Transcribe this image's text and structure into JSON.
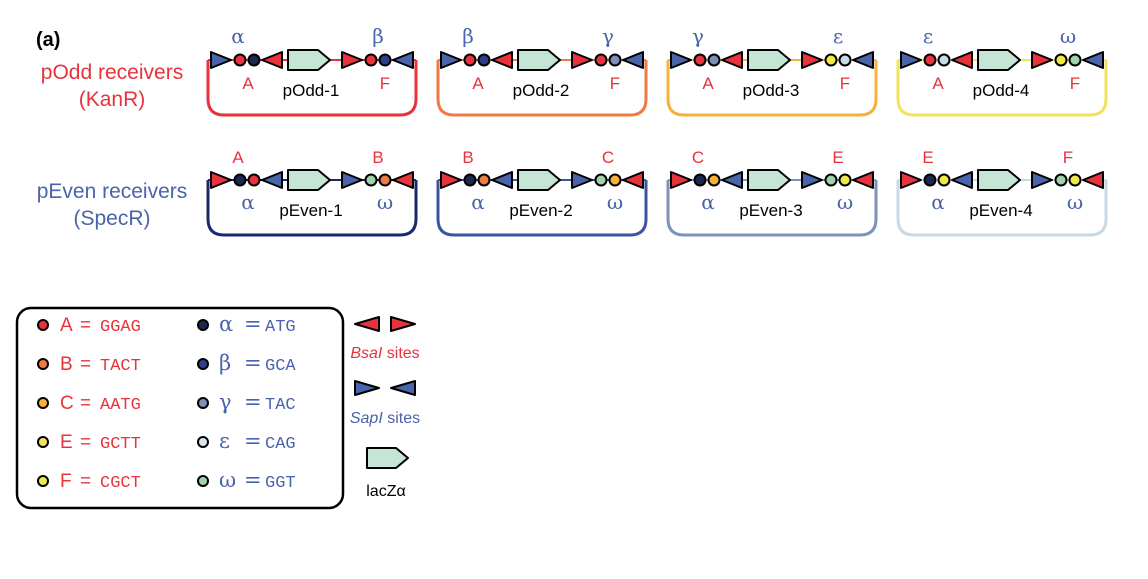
{
  "panel_label": "(a)",
  "rows": [
    {
      "title": "pOdd receivers",
      "subtitle": "(KanR)",
      "color": "#e8323c",
      "plasmids": [
        {
          "name": "pOdd-1",
          "top_left": "α",
          "top_right": "β",
          "bottom_left": "A",
          "bottom_right": "F",
          "loop_color": "#e8323c",
          "left_inner_dot": "#1a2750",
          "left_outer_dot": "#e8323c",
          "right_inner_dot": "#e8323c",
          "right_outer_dot": "#2d3f8a",
          "outer": "sapi",
          "inner": "bsai"
        },
        {
          "name": "pOdd-2",
          "top_left": "β",
          "top_right": "γ",
          "bottom_left": "A",
          "bottom_right": "F",
          "loop_color": "#f07a45",
          "left_inner_dot": "#2d3f8a",
          "left_outer_dot": "#e8323c",
          "right_inner_dot": "#e8323c",
          "right_outer_dot": "#7d8fb8",
          "outer": "sapi",
          "inner": "bsai"
        },
        {
          "name": "pOdd-3",
          "top_left": "γ",
          "top_right": "ε",
          "bottom_left": "A",
          "bottom_right": "F",
          "loop_color": "#f5b13c",
          "left_inner_dot": "#7d8fb8",
          "left_outer_dot": "#e8323c",
          "right_inner_dot": "#f0ea46",
          "right_outer_dot": "#c9dbe8",
          "outer": "sapi",
          "inner": "bsai"
        },
        {
          "name": "pOdd-4",
          "top_left": "ε",
          "top_right": "ω",
          "bottom_left": "A",
          "bottom_right": "F",
          "loop_color": "#f2e35b",
          "left_inner_dot": "#c9dbe8",
          "left_outer_dot": "#e8323c",
          "right_inner_dot": "#f0ea46",
          "right_outer_dot": "#9fd3a9",
          "outer": "sapi",
          "inner": "bsai"
        }
      ]
    },
    {
      "title": "pEven receivers",
      "subtitle": "(SpecR)",
      "color": "#4a64ac",
      "plasmids": [
        {
          "name": "pEven-1",
          "top_left": "A",
          "top_right": "B",
          "bottom_left": "α",
          "bottom_right": "ω",
          "loop_color": "#1a2a6e",
          "left_inner_dot": "#e8323c",
          "left_outer_dot": "#1a2750",
          "right_inner_dot": "#9fd3a9",
          "right_outer_dot": "#f07a45",
          "outer": "bsai",
          "inner": "sapi"
        },
        {
          "name": "pEven-2",
          "top_left": "B",
          "top_right": "C",
          "bottom_left": "α",
          "bottom_right": "ω",
          "loop_color": "#3c54a0",
          "left_inner_dot": "#f07a45",
          "left_outer_dot": "#1a2750",
          "right_inner_dot": "#9fd3a9",
          "right_outer_dot": "#f5b13c",
          "outer": "bsai",
          "inner": "sapi"
        },
        {
          "name": "pEven-3",
          "top_left": "C",
          "top_right": "E",
          "bottom_left": "α",
          "bottom_right": "ω",
          "loop_color": "#7b92bb",
          "left_inner_dot": "#f5b13c",
          "left_outer_dot": "#1a2750",
          "right_inner_dot": "#9fd3a9",
          "right_outer_dot": "#f0ea46",
          "outer": "bsai",
          "inner": "sapi"
        },
        {
          "name": "pEven-4",
          "top_left": "E",
          "top_right": "F",
          "bottom_left": "α",
          "bottom_right": "ω",
          "loop_color": "#c5d9e6",
          "left_inner_dot": "#f0ea46",
          "left_outer_dot": "#1a2750",
          "right_inner_dot": "#9fd3a9",
          "right_outer_dot": "#f0ea46",
          "outer": "bsai",
          "inner": "sapi"
        }
      ]
    }
  ],
  "legend": {
    "red_entries": [
      {
        "letter": "A",
        "eq": "=",
        "seq": "GGAG",
        "dot": "#e8323c"
      },
      {
        "letter": "B",
        "eq": "=",
        "seq": "TACT",
        "dot": "#f07a45"
      },
      {
        "letter": "C",
        "eq": "=",
        "seq": "AATG",
        "dot": "#f5b13c"
      },
      {
        "letter": "E",
        "eq": "=",
        "seq": "GCTT",
        "dot": "#f2e35b"
      },
      {
        "letter": "F",
        "eq": "=",
        "seq": "CGCT",
        "dot": "#f0ea46"
      }
    ],
    "blue_entries": [
      {
        "letter": "α",
        "eq": "=",
        "seq": "ATG",
        "dot": "#1a2750"
      },
      {
        "letter": "β",
        "eq": "=",
        "seq": "GCA",
        "dot": "#2d3f8a"
      },
      {
        "letter": "γ",
        "eq": "=",
        "seq": "TAC",
        "dot": "#7d8fb8"
      },
      {
        "letter": "ε",
        "eq": "=",
        "seq": "CAG",
        "dot": "#d8e6ef"
      },
      {
        "letter": "ω",
        "eq": "=",
        "seq": "GGT",
        "dot": "#9fd3a9"
      }
    ]
  },
  "key": {
    "bsai_italic": "BsaI",
    "bsai_suffix": " sites",
    "sapi_italic": "SapI",
    "sapi_suffix": " sites",
    "lacz_label": "lacZα"
  },
  "colors": {
    "bsai": "#e8323c",
    "sapi": "#4a64ac",
    "lacz": "#c5e6d4",
    "red_text": "#e8323c",
    "blue_text": "#4a64ac"
  }
}
